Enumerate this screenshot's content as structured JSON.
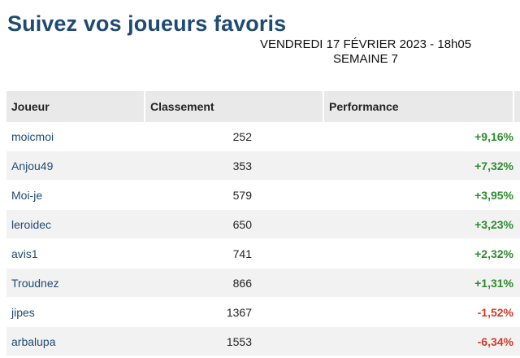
{
  "header": {
    "title": "Suivez vos joueurs favoris",
    "date": "VENDREDI 17 FÉVRIER 2023 - 18h05",
    "week": "SEMAINE 7"
  },
  "table": {
    "columns": [
      "Joueur",
      "Classement",
      "Performance"
    ],
    "rows": [
      {
        "player": "moicmoi",
        "rank": "252",
        "performance": "+9,16%",
        "trend": "positive"
      },
      {
        "player": "Anjou49",
        "rank": "353",
        "performance": "+7,32%",
        "trend": "positive"
      },
      {
        "player": "Moi-je",
        "rank": "579",
        "performance": "+3,95%",
        "trend": "positive"
      },
      {
        "player": "leroidec",
        "rank": "650",
        "performance": "+3,23%",
        "trend": "positive"
      },
      {
        "player": "avis1",
        "rank": "741",
        "performance": "+2,32%",
        "trend": "positive"
      },
      {
        "player": "Troudnez",
        "rank": "866",
        "performance": "+1,31%",
        "trend": "positive"
      },
      {
        "player": "jipes",
        "rank": "1367",
        "performance": "-1,52%",
        "trend": "negative"
      },
      {
        "player": "arbalupa",
        "rank": "1553",
        "performance": "-6,34%",
        "trend": "negative"
      }
    ]
  },
  "colors": {
    "title": "#1f4a72",
    "positive": "#2e8b2e",
    "negative": "#d23b2a",
    "header_bg": "#e9e9e9",
    "stripe_bg": "#f2f2f2"
  }
}
